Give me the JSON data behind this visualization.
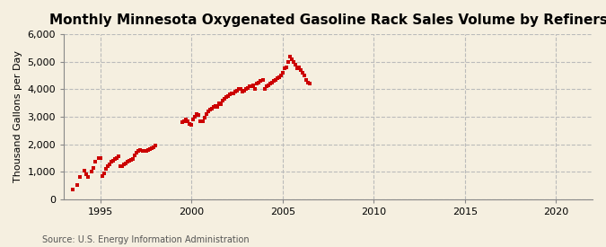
{
  "title": "Monthly Minnesota Oxygenated Gasoline Rack Sales Volume by Refiners",
  "ylabel": "Thousand Gallons per Day",
  "source_text": "Source: U.S. Energy Information Administration",
  "background_color": "#F5EFE0",
  "plot_bg_color": "#F5EFE0",
  "marker_color": "#CC0000",
  "marker": "s",
  "marker_size": 3,
  "xlim": [
    1993,
    2022
  ],
  "ylim": [
    0,
    6000
  ],
  "yticks": [
    0,
    1000,
    2000,
    3000,
    4000,
    5000,
    6000
  ],
  "xticks": [
    1995,
    2000,
    2005,
    2010,
    2015,
    2020
  ],
  "grid_color": "#BBBBBB",
  "grid_style": "--",
  "title_fontsize": 11,
  "label_fontsize": 8,
  "tick_fontsize": 8,
  "source_fontsize": 7,
  "data_x": [
    1993.5,
    1993.75,
    1993.9,
    1994.1,
    1994.2,
    1994.3,
    1994.5,
    1994.6,
    1994.7,
    1994.9,
    1995.0,
    1995.1,
    1995.2,
    1995.3,
    1995.4,
    1995.5,
    1995.6,
    1995.7,
    1995.8,
    1995.9,
    1996.0,
    1996.1,
    1996.2,
    1996.3,
    1996.4,
    1996.5,
    1996.6,
    1996.7,
    1996.8,
    1996.9,
    1997.0,
    1997.1,
    1997.2,
    1997.3,
    1997.5,
    1997.6,
    1997.7,
    1997.8,
    1997.9,
    1998.0,
    1999.5,
    1999.6,
    1999.7,
    1999.8,
    1999.9,
    2000.0,
    2000.1,
    2000.2,
    2000.3,
    2000.4,
    2000.5,
    2000.6,
    2000.7,
    2000.8,
    2000.9,
    2001.0,
    2001.1,
    2001.2,
    2001.3,
    2001.4,
    2001.5,
    2001.6,
    2001.7,
    2001.8,
    2001.9,
    2002.0,
    2002.1,
    2002.2,
    2002.3,
    2002.4,
    2002.5,
    2002.6,
    2002.7,
    2002.8,
    2002.9,
    2003.0,
    2003.1,
    2003.2,
    2003.3,
    2003.4,
    2003.5,
    2003.6,
    2003.7,
    2003.8,
    2003.9,
    2004.0,
    2004.1,
    2004.2,
    2004.3,
    2004.4,
    2004.5,
    2004.6,
    2004.7,
    2004.8,
    2004.9,
    2005.0,
    2005.1,
    2005.2,
    2005.3,
    2005.4,
    2005.5,
    2005.6,
    2005.7,
    2005.8,
    2005.9,
    2006.0,
    2006.1,
    2006.2,
    2006.3,
    2006.4,
    2006.5
  ],
  "data_y": [
    350,
    500,
    800,
    1050,
    900,
    820,
    1000,
    1150,
    1350,
    1480,
    1500,
    850,
    950,
    1100,
    1200,
    1250,
    1350,
    1380,
    1450,
    1500,
    1550,
    1200,
    1200,
    1250,
    1300,
    1350,
    1380,
    1420,
    1450,
    1600,
    1700,
    1750,
    1800,
    1750,
    1750,
    1800,
    1820,
    1850,
    1900,
    1950,
    2800,
    2850,
    2900,
    2850,
    2750,
    2700,
    2900,
    3000,
    3100,
    3050,
    2850,
    2850,
    2950,
    3100,
    3200,
    3250,
    3300,
    3350,
    3400,
    3350,
    3500,
    3450,
    3600,
    3650,
    3700,
    3750,
    3800,
    3850,
    3850,
    3900,
    3950,
    4000,
    4000,
    3900,
    3950,
    4000,
    4050,
    4100,
    4100,
    4150,
    4000,
    4200,
    4250,
    4300,
    4350,
    4000,
    4100,
    4150,
    4200,
    4250,
    4300,
    4350,
    4400,
    4450,
    4500,
    4600,
    4750,
    4800,
    5000,
    5200,
    5100,
    5000,
    4900,
    4750,
    4800,
    4700,
    4600,
    4500,
    4350,
    4250,
    4200
  ]
}
